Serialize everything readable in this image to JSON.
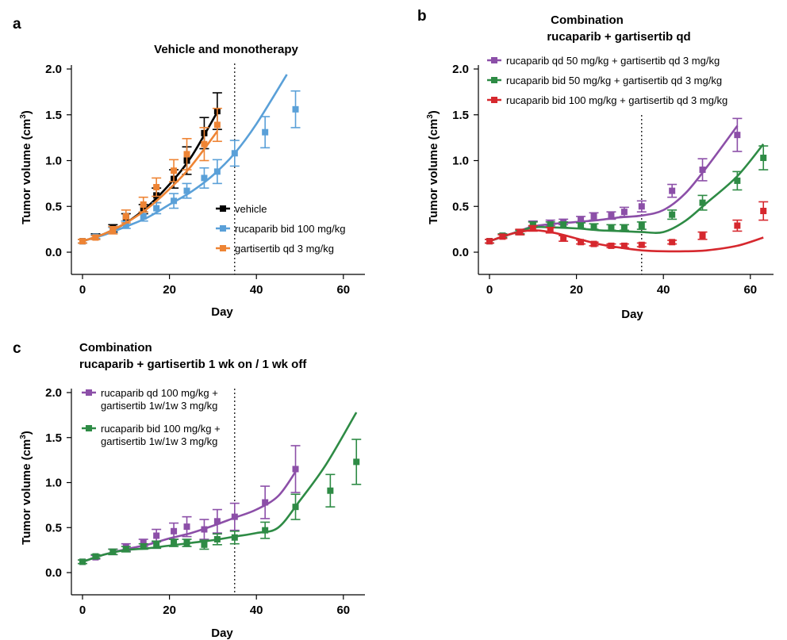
{
  "colors": {
    "vehicle": "#000000",
    "blue": "#5aa0d8",
    "orange": "#ee8434",
    "purple": "#8c4fa8",
    "green": "#2e8b45",
    "red": "#d6282e"
  },
  "chart_data": [
    {
      "panel": "a",
      "type": "line",
      "title": "Vehicle and monotherapy",
      "xlabel": "Day",
      "ylabel": "Tumor volume (cm3)",
      "xlim": [
        0,
        63
      ],
      "ylim": [
        0,
        2
      ],
      "xticks": [
        0,
        20,
        40,
        60
      ],
      "yticks": [
        "0.0",
        "0.5",
        "1.0",
        "1.5",
        "2.0"
      ],
      "vline": 35,
      "legend_position": "bottom-right",
      "series": [
        {
          "name": "vehicle",
          "color_key": "vehicle",
          "x": [
            0,
            3,
            7,
            10,
            14,
            17,
            21,
            24,
            28,
            31
          ],
          "y": [
            0.12,
            0.17,
            0.26,
            0.38,
            0.47,
            0.62,
            0.8,
            1.0,
            1.3,
            1.54
          ],
          "err": [
            0.02,
            0.03,
            0.04,
            0.04,
            0.05,
            0.08,
            0.1,
            0.15,
            0.17,
            0.2
          ],
          "fit_x": [
            0,
            5,
            10,
            15,
            20,
            25,
            31
          ],
          "fit_y": [
            0.12,
            0.2,
            0.32,
            0.5,
            0.74,
            1.04,
            1.53
          ]
        },
        {
          "name": "rucaparib bid 100 mg/kg",
          "color_key": "blue",
          "x": [
            0,
            3,
            7,
            10,
            14,
            17,
            21,
            24,
            28,
            31,
            35,
            42,
            49
          ],
          "y": [
            0.12,
            0.17,
            0.24,
            0.3,
            0.39,
            0.48,
            0.56,
            0.67,
            0.81,
            0.88,
            1.08,
            1.31,
            1.56
          ],
          "err": [
            0.02,
            0.02,
            0.03,
            0.04,
            0.05,
            0.06,
            0.08,
            0.08,
            0.11,
            0.13,
            0.14,
            0.17,
            0.2
          ],
          "fit_x": [
            0,
            5,
            10,
            15,
            20,
            25,
            30,
            35,
            40,
            47
          ],
          "fit_y": [
            0.12,
            0.19,
            0.28,
            0.38,
            0.52,
            0.66,
            0.84,
            1.08,
            1.4,
            1.94
          ]
        },
        {
          "name": "gartisertib qd 3 mg/kg",
          "color_key": "orange",
          "x": [
            0,
            3,
            7,
            10,
            14,
            17,
            21,
            24,
            28,
            31
          ],
          "y": [
            0.12,
            0.16,
            0.24,
            0.39,
            0.52,
            0.71,
            0.89,
            1.07,
            1.18,
            1.39
          ],
          "err": [
            0.02,
            0.02,
            0.04,
            0.07,
            0.08,
            0.1,
            0.12,
            0.17,
            0.18,
            0.18
          ],
          "fit_x": [
            0,
            5,
            10,
            15,
            20,
            25,
            31
          ],
          "fit_y": [
            0.12,
            0.2,
            0.32,
            0.48,
            0.69,
            0.94,
            1.32
          ]
        }
      ]
    },
    {
      "panel": "b",
      "type": "line",
      "title": "Combination",
      "subtitle": "rucaparib + gartisertib qd",
      "xlabel": "Day",
      "ylabel": "Tumor volume (cm3)",
      "xlim": [
        0,
        63
      ],
      "ylim": [
        0,
        2
      ],
      "xticks": [
        0,
        20,
        40,
        60
      ],
      "yticks": [
        "0.0",
        "0.5",
        "1.0",
        "1.5",
        "2.0"
      ],
      "vline": 35,
      "legend_position": "top-left",
      "series": [
        {
          "name": "rucaparib qd 50 mg/kg + gartisertib qd 3 mg/kg",
          "color_key": "purple",
          "x": [
            0,
            3,
            7,
            10,
            14,
            17,
            21,
            24,
            28,
            31,
            35,
            42,
            49,
            57
          ],
          "y": [
            0.12,
            0.18,
            0.22,
            0.31,
            0.32,
            0.33,
            0.36,
            0.39,
            0.4,
            0.44,
            0.5,
            0.67,
            0.9,
            1.28
          ],
          "err": [
            0.02,
            0.02,
            0.02,
            0.03,
            0.03,
            0.03,
            0.03,
            0.04,
            0.04,
            0.05,
            0.06,
            0.07,
            0.12,
            0.18
          ],
          "fit_x": [
            0,
            5,
            10,
            15,
            20,
            25,
            30,
            35,
            40,
            45,
            50,
            57
          ],
          "fit_y": [
            0.12,
            0.2,
            0.28,
            0.31,
            0.33,
            0.35,
            0.38,
            0.4,
            0.46,
            0.64,
            0.93,
            1.38
          ]
        },
        {
          "name": "rucaparib bid 50 mg/kg + gartisertib qd 3 mg/kg",
          "color_key": "green",
          "x": [
            0,
            3,
            7,
            10,
            14,
            17,
            21,
            24,
            28,
            31,
            35,
            42,
            49,
            57,
            63
          ],
          "y": [
            0.12,
            0.18,
            0.22,
            0.3,
            0.3,
            0.3,
            0.29,
            0.28,
            0.27,
            0.27,
            0.29,
            0.41,
            0.54,
            0.78,
            1.03
          ],
          "err": [
            0.02,
            0.02,
            0.02,
            0.03,
            0.03,
            0.03,
            0.03,
            0.03,
            0.03,
            0.03,
            0.04,
            0.05,
            0.08,
            0.1,
            0.13
          ],
          "fit_x": [
            0,
            5,
            10,
            15,
            20,
            25,
            30,
            35,
            40,
            45,
            50,
            57,
            63
          ],
          "fit_y": [
            0.12,
            0.2,
            0.27,
            0.27,
            0.26,
            0.24,
            0.23,
            0.22,
            0.22,
            0.34,
            0.54,
            0.83,
            1.18
          ]
        },
        {
          "name": "rucaparib bid 100 mg/kg + gartisertib qd 3 mg/kg",
          "color_key": "red",
          "x": [
            0,
            3,
            7,
            10,
            14,
            17,
            21,
            24,
            28,
            31,
            35,
            42,
            49,
            57,
            63
          ],
          "y": [
            0.12,
            0.17,
            0.22,
            0.26,
            0.24,
            0.15,
            0.11,
            0.09,
            0.07,
            0.07,
            0.08,
            0.11,
            0.18,
            0.29,
            0.45
          ],
          "err": [
            0.02,
            0.02,
            0.03,
            0.03,
            0.03,
            0.03,
            0.02,
            0.02,
            0.02,
            0.02,
            0.02,
            0.02,
            0.04,
            0.06,
            0.1
          ],
          "fit_x": [
            0,
            5,
            10,
            15,
            20,
            25,
            30,
            35,
            40,
            45,
            50,
            57,
            63
          ],
          "fit_y": [
            0.12,
            0.2,
            0.24,
            0.21,
            0.15,
            0.09,
            0.05,
            0.02,
            0.01,
            0.01,
            0.02,
            0.07,
            0.16
          ]
        }
      ]
    },
    {
      "panel": "c",
      "type": "line",
      "title": "Combination",
      "subtitle": "rucaparib + gartisertib 1 wk on / 1 wk off",
      "xlabel": "Day",
      "ylabel": "Tumor volume (cm3)",
      "xlim": [
        0,
        63
      ],
      "ylim": [
        0,
        2
      ],
      "xticks": [
        0,
        20,
        40,
        60
      ],
      "yticks": [
        "0.0",
        "0.5",
        "1.0",
        "1.5",
        "2.0"
      ],
      "vline": 35,
      "legend_position": "top-left",
      "series": [
        {
          "name": "rucaparib qd 100 mg/kg + gartisertib 1w/1w 3 mg/kg",
          "color_key": "purple",
          "x": [
            0,
            3,
            7,
            10,
            14,
            17,
            21,
            24,
            28,
            31,
            35,
            42,
            49
          ],
          "y": [
            0.12,
            0.17,
            0.23,
            0.28,
            0.33,
            0.41,
            0.46,
            0.51,
            0.48,
            0.57,
            0.62,
            0.78,
            1.15
          ],
          "err": [
            0.02,
            0.02,
            0.03,
            0.04,
            0.04,
            0.07,
            0.09,
            0.11,
            0.11,
            0.13,
            0.15,
            0.18,
            0.26
          ],
          "fit_x": [
            0,
            5,
            10,
            15,
            20,
            25,
            30,
            35,
            40,
            45,
            49
          ],
          "fit_y": [
            0.12,
            0.2,
            0.26,
            0.31,
            0.38,
            0.44,
            0.52,
            0.61,
            0.7,
            0.85,
            1.12
          ]
        },
        {
          "name": "rucaparib bid 100 mg/kg + gartisertib 1w/1w 3 mg/kg",
          "color_key": "green",
          "x": [
            0,
            3,
            7,
            10,
            14,
            17,
            21,
            24,
            28,
            31,
            35,
            42,
            49,
            57,
            63
          ],
          "y": [
            0.12,
            0.18,
            0.23,
            0.26,
            0.29,
            0.31,
            0.33,
            0.33,
            0.31,
            0.37,
            0.39,
            0.47,
            0.73,
            0.91,
            1.23
          ],
          "err": [
            0.02,
            0.02,
            0.03,
            0.03,
            0.03,
            0.04,
            0.04,
            0.04,
            0.05,
            0.06,
            0.07,
            0.09,
            0.14,
            0.18,
            0.25
          ],
          "fit_x": [
            0,
            5,
            10,
            15,
            20,
            25,
            30,
            35,
            40,
            45,
            50,
            56,
            63
          ],
          "fit_y": [
            0.12,
            0.2,
            0.25,
            0.27,
            0.3,
            0.33,
            0.36,
            0.4,
            0.44,
            0.5,
            0.8,
            1.2,
            1.78
          ]
        }
      ]
    }
  ],
  "legend_lines": {
    "a": [
      [
        "vehicle"
      ],
      [
        "rucaparib bid 100 mg/kg"
      ],
      [
        "gartisertib qd 3 mg/kg"
      ]
    ],
    "b": [
      [
        "rucaparib qd 50 mg/kg + gartisertib qd 3 mg/kg"
      ],
      [
        "rucaparib bid 50 mg/kg + gartisertib qd 3 mg/kg"
      ],
      [
        "rucaparib bid 100 mg/kg + gartisertib qd 3 mg/kg"
      ]
    ],
    "c": [
      [
        "rucaparib qd 100 mg/kg +",
        "gartisertib 1w/1w 3 mg/kg"
      ],
      [
        "rucaparib bid 100 mg/kg +",
        "gartisertib 1w/1w 3 mg/kg"
      ]
    ]
  }
}
